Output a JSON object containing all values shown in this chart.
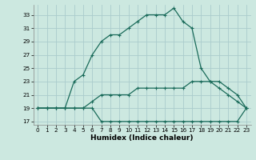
{
  "title": "",
  "xlabel": "Humidex (Indice chaleur)",
  "bg_color": "#cce8e0",
  "grid_color": "#aacccc",
  "line_color": "#1a6b5a",
  "xlim": [
    -0.5,
    23.5
  ],
  "ylim": [
    16.5,
    34.5
  ],
  "yticks": [
    17,
    19,
    21,
    23,
    25,
    27,
    29,
    31,
    33
  ],
  "xticks": [
    0,
    1,
    2,
    3,
    4,
    5,
    6,
    7,
    8,
    9,
    10,
    11,
    12,
    13,
    14,
    15,
    16,
    17,
    18,
    19,
    20,
    21,
    22,
    23
  ],
  "curve1_x": [
    0,
    1,
    2,
    3,
    4,
    5,
    6,
    7,
    8,
    9,
    10,
    11,
    12,
    13,
    14,
    15,
    16,
    17,
    18,
    19,
    20,
    21,
    22,
    23
  ],
  "curve1_y": [
    19,
    19,
    19,
    19,
    19,
    19,
    19,
    17,
    17,
    17,
    17,
    17,
    17,
    17,
    17,
    17,
    17,
    17,
    17,
    17,
    17,
    17,
    17,
    19
  ],
  "curve2_x": [
    0,
    1,
    2,
    3,
    4,
    5,
    6,
    7,
    8,
    9,
    10,
    11,
    12,
    13,
    14,
    15,
    16,
    17,
    18,
    19,
    20,
    21,
    22,
    23
  ],
  "curve2_y": [
    19,
    19,
    19,
    19,
    19,
    19,
    20,
    21,
    21,
    21,
    21,
    22,
    22,
    22,
    22,
    22,
    22,
    23,
    23,
    23,
    23,
    22,
    21,
    19
  ],
  "curve3_x": [
    0,
    1,
    2,
    3,
    4,
    5,
    6,
    7,
    8,
    9,
    10,
    11,
    12,
    13,
    14,
    15,
    16,
    17,
    18,
    19,
    20,
    21,
    22,
    23
  ],
  "curve3_y": [
    19,
    19,
    19,
    19,
    23,
    24,
    27,
    29,
    30,
    30,
    31,
    32,
    33,
    33,
    33,
    34,
    32,
    31,
    25,
    23,
    22,
    21,
    20,
    19
  ],
  "xlabel_fontsize": 6.5,
  "tick_fontsize": 5.2,
  "linewidth": 0.9,
  "markersize": 2.5
}
